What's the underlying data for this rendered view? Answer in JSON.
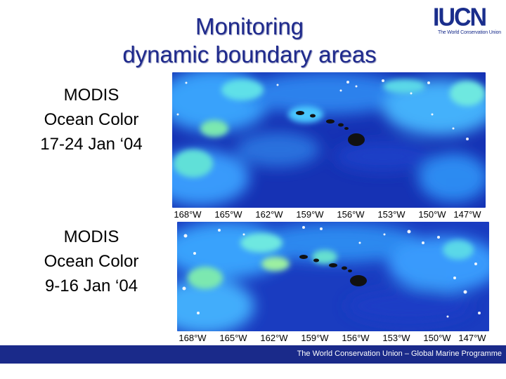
{
  "slide": {
    "title_lines": [
      "Monitoring",
      "dynamic boundary areas"
    ],
    "logo": {
      "word": "IUCN",
      "tagline": "The World Conservation Union"
    },
    "captions": [
      {
        "lines": [
          "MODIS",
          "Ocean Color",
          "17-24  Jan ‘04"
        ]
      },
      {
        "lines": [
          "MODIS",
          "Ocean Color",
          "9-16  Jan ‘04"
        ]
      }
    ],
    "maps": [
      {
        "ticks": [
          "168°W",
          "165°W",
          "162°W",
          "159°W",
          "156°W",
          "153°W",
          "150°W",
          "147°W"
        ]
      },
      {
        "ticks": [
          "168°W",
          "165°W",
          "162°W",
          "159°W",
          "156°W",
          "153°W",
          "150°W",
          "147°W"
        ]
      }
    ],
    "footer": "The World Conservation Union – Global Marine Programme",
    "colors": {
      "title": "#1f2a8c",
      "footer_bg": "#1a2a8a",
      "ocean_deep": "#1530b0",
      "ocean_light": "#3aa0ff"
    }
  }
}
